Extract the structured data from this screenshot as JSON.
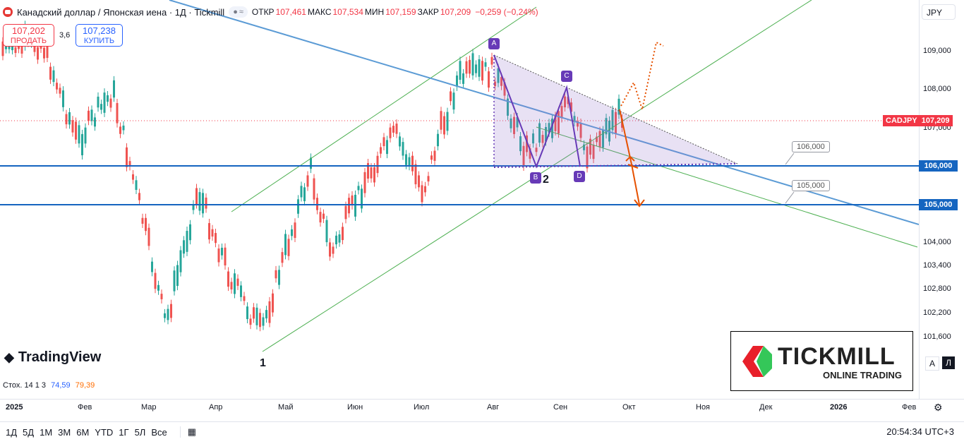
{
  "header": {
    "symbol": "Канадский доллар / Японская иена · 1Д · Tickmill",
    "indicator_pill": "≈",
    "open_label": "ОТКР",
    "open": "107,461",
    "high_label": "МАКС",
    "high": "107,534",
    "low_label": "МИН",
    "low": "107,159",
    "close_label": "ЗАКР",
    "close": "107,209",
    "change": "−0,259 (−0,24%)"
  },
  "trade": {
    "sell_price": "107,202",
    "sell_label": "ПРОДАТЬ",
    "spread": "3,6",
    "buy_price": "107,238",
    "buy_label": "КУПИТЬ"
  },
  "currency_button": "JPY",
  "price_axis": {
    "ticks": [
      "109,000",
      "108,000",
      "107,000",
      "104,000",
      "103,400",
      "102,800",
      "102,200",
      "101,600"
    ],
    "symbol_tag": "CADJPY",
    "last_price": "107,209",
    "level_106": "106,000",
    "level_105": "105,000"
  },
  "time_axis": [
    "2025",
    "Фев",
    "Мар",
    "Апр",
    "Май",
    "Июн",
    "Июл",
    "Авг",
    "Сен",
    "Окт",
    "Ноя",
    "Дек",
    "2026",
    "Фев"
  ],
  "stoch": {
    "name": "Стох. 14 1 3",
    "k": "74,59",
    "d": "79,39"
  },
  "annotations": {
    "callout_106": "106,000",
    "callout_105": "105,000",
    "points": [
      "A",
      "B",
      "C",
      "D"
    ],
    "wave_1": "1",
    "wave_2": "2"
  },
  "logos": {
    "tradingview": "TradingView",
    "tickmill": "TICKMILL",
    "tickmill_sub": "ONLINE TRADING"
  },
  "toolbar": {
    "timeframes": [
      "1Д",
      "5Д",
      "1М",
      "3М",
      "6М",
      "YTD",
      "1Г",
      "5Л",
      "Все"
    ],
    "clock": "20:54:34 UTC+3"
  },
  "colors": {
    "up": "#26a69a",
    "down": "#ef5350",
    "trend": "#5b9bd5",
    "level": "#1565c0",
    "channel": "#4caf50",
    "pattern": "#673ab7",
    "projection": "#e65100"
  }
}
